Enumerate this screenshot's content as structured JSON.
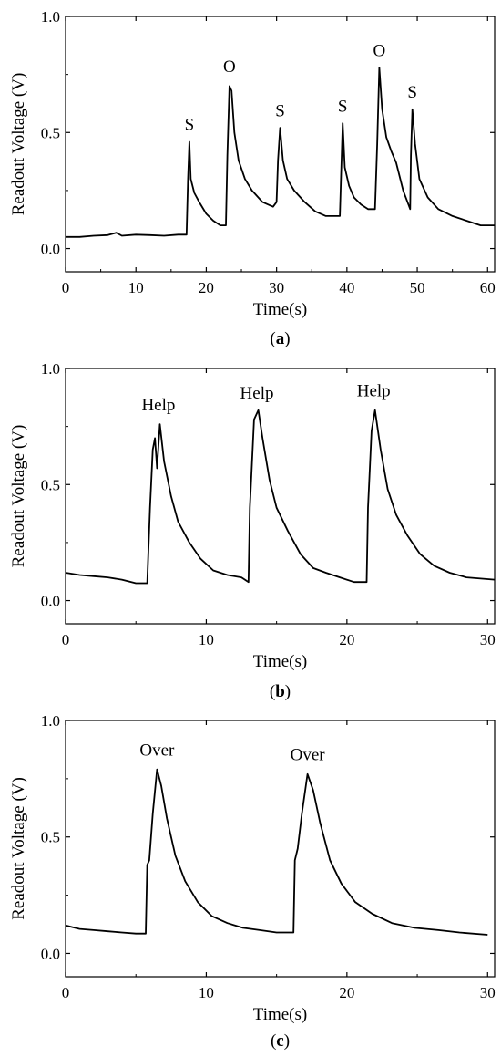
{
  "chart_data": [
    {
      "type": "line",
      "caption_letter": "a",
      "xlabel": "Time(s)",
      "ylabel": "Readout Voltage (V)",
      "xlim": [
        0,
        61
      ],
      "ylim": [
        -0.1,
        1.0
      ],
      "xticks": [
        0,
        10,
        20,
        30,
        40,
        50,
        60
      ],
      "yticks": [
        0.0,
        0.5,
        1.0
      ],
      "xtick_labels": [
        "0",
        "10",
        "20",
        "30",
        "40",
        "50",
        "60"
      ],
      "ytick_labels": [
        "0.0",
        "0.5",
        "1.0"
      ],
      "series": [
        {
          "color": "#000000",
          "points": [
            [
              0,
              0.05
            ],
            [
              2,
              0.05
            ],
            [
              4,
              0.055
            ],
            [
              6,
              0.058
            ],
            [
              7.2,
              0.068
            ],
            [
              8,
              0.055
            ],
            [
              10,
              0.06
            ],
            [
              12,
              0.058
            ],
            [
              14,
              0.055
            ],
            [
              16,
              0.06
            ],
            [
              17.2,
              0.06
            ],
            [
              17.4,
              0.3
            ],
            [
              17.6,
              0.46
            ],
            [
              17.8,
              0.3
            ],
            [
              18.3,
              0.24
            ],
            [
              19,
              0.2
            ],
            [
              20,
              0.15
            ],
            [
              21,
              0.12
            ],
            [
              22,
              0.1
            ],
            [
              22.8,
              0.1
            ],
            [
              23,
              0.4
            ],
            [
              23.3,
              0.7
            ],
            [
              23.6,
              0.68
            ],
            [
              24,
              0.5
            ],
            [
              24.6,
              0.38
            ],
            [
              25.5,
              0.3
            ],
            [
              26.5,
              0.25
            ],
            [
              28,
              0.2
            ],
            [
              29.5,
              0.18
            ],
            [
              30,
              0.2
            ],
            [
              30.2,
              0.38
            ],
            [
              30.5,
              0.52
            ],
            [
              30.9,
              0.38
            ],
            [
              31.5,
              0.3
            ],
            [
              32.5,
              0.25
            ],
            [
              34,
              0.2
            ],
            [
              35.5,
              0.16
            ],
            [
              37,
              0.14
            ],
            [
              39,
              0.14
            ],
            [
              39.2,
              0.35
            ],
            [
              39.4,
              0.54
            ],
            [
              39.7,
              0.35
            ],
            [
              40.3,
              0.27
            ],
            [
              41,
              0.22
            ],
            [
              42,
              0.19
            ],
            [
              43,
              0.17
            ],
            [
              44,
              0.17
            ],
            [
              44.3,
              0.45
            ],
            [
              44.6,
              0.78
            ],
            [
              45,
              0.6
            ],
            [
              45.6,
              0.48
            ],
            [
              46.3,
              0.42
            ],
            [
              47,
              0.37
            ],
            [
              48,
              0.25
            ],
            [
              49,
              0.17
            ],
            [
              49.1,
              0.4
            ],
            [
              49.3,
              0.6
            ],
            [
              49.7,
              0.45
            ],
            [
              50.3,
              0.3
            ],
            [
              51.5,
              0.22
            ],
            [
              53,
              0.17
            ],
            [
              55,
              0.14
            ],
            [
              57,
              0.12
            ],
            [
              59,
              0.1
            ],
            [
              61,
              0.1
            ]
          ]
        }
      ],
      "annotations": [
        {
          "text": "S",
          "x": 17.6,
          "y": 0.51
        },
        {
          "text": "O",
          "x": 23.3,
          "y": 0.76
        },
        {
          "text": "S",
          "x": 30.5,
          "y": 0.57
        },
        {
          "text": "S",
          "x": 39.4,
          "y": 0.59
        },
        {
          "text": "O",
          "x": 44.6,
          "y": 0.83
        },
        {
          "text": "S",
          "x": 49.3,
          "y": 0.65
        }
      ]
    },
    {
      "type": "line",
      "caption_letter": "b",
      "xlabel": "Time(s)",
      "ylabel": "Readout Voltage (V)",
      "xlim": [
        0,
        30.5
      ],
      "ylim": [
        -0.1,
        1.0
      ],
      "xticks": [
        0,
        10,
        20,
        30
      ],
      "yticks": [
        0.0,
        0.5,
        1.0
      ],
      "xtick_labels": [
        "0",
        "10",
        "20",
        "30"
      ],
      "ytick_labels": [
        "0.0",
        "0.5",
        "1.0"
      ],
      "series": [
        {
          "color": "#000000",
          "points": [
            [
              0,
              0.12
            ],
            [
              1,
              0.11
            ],
            [
              2,
              0.105
            ],
            [
              3,
              0.1
            ],
            [
              4,
              0.09
            ],
            [
              5,
              0.075
            ],
            [
              5.8,
              0.075
            ],
            [
              6,
              0.4
            ],
            [
              6.2,
              0.65
            ],
            [
              6.35,
              0.7
            ],
            [
              6.5,
              0.57
            ],
            [
              6.7,
              0.76
            ],
            [
              7,
              0.6
            ],
            [
              7.5,
              0.45
            ],
            [
              8,
              0.34
            ],
            [
              8.8,
              0.25
            ],
            [
              9.6,
              0.18
            ],
            [
              10.5,
              0.13
            ],
            [
              11.5,
              0.11
            ],
            [
              12.5,
              0.1
            ],
            [
              13,
              0.08
            ],
            [
              13.1,
              0.4
            ],
            [
              13.4,
              0.78
            ],
            [
              13.7,
              0.82
            ],
            [
              14,
              0.7
            ],
            [
              14.5,
              0.52
            ],
            [
              15,
              0.4
            ],
            [
              15.8,
              0.3
            ],
            [
              16.7,
              0.2
            ],
            [
              17.6,
              0.14
            ],
            [
              18.5,
              0.12
            ],
            [
              19.5,
              0.1
            ],
            [
              20.5,
              0.08
            ],
            [
              21.4,
              0.08
            ],
            [
              21.5,
              0.4
            ],
            [
              21.75,
              0.73
            ],
            [
              22,
              0.82
            ],
            [
              22.4,
              0.65
            ],
            [
              22.9,
              0.48
            ],
            [
              23.5,
              0.37
            ],
            [
              24.3,
              0.28
            ],
            [
              25.2,
              0.2
            ],
            [
              26.2,
              0.15
            ],
            [
              27.3,
              0.12
            ],
            [
              28.5,
              0.1
            ],
            [
              30.5,
              0.09
            ]
          ]
        }
      ],
      "annotations": [
        {
          "text": "Help",
          "x": 6.6,
          "y": 0.82
        },
        {
          "text": "Help",
          "x": 13.6,
          "y": 0.87
        },
        {
          "text": "Help",
          "x": 21.9,
          "y": 0.88
        }
      ]
    },
    {
      "type": "line",
      "caption_letter": "c",
      "xlabel": "Time(s)",
      "ylabel": "Readout Voltage (V)",
      "xlim": [
        0,
        30.5
      ],
      "ylim": [
        -0.1,
        1.0
      ],
      "xticks": [
        0,
        10,
        20,
        30
      ],
      "yticks": [
        0.0,
        0.5,
        1.0
      ],
      "xtick_labels": [
        "0",
        "10",
        "20",
        "30"
      ],
      "ytick_labels": [
        "0.0",
        "0.5",
        "1.0"
      ],
      "series": [
        {
          "color": "#000000",
          "points": [
            [
              0,
              0.12
            ],
            [
              1,
              0.105
            ],
            [
              2,
              0.1
            ],
            [
              3,
              0.095
            ],
            [
              4,
              0.09
            ],
            [
              5,
              0.085
            ],
            [
              5.7,
              0.085
            ],
            [
              5.8,
              0.38
            ],
            [
              5.95,
              0.4
            ],
            [
              6.2,
              0.6
            ],
            [
              6.5,
              0.79
            ],
            [
              6.8,
              0.72
            ],
            [
              7.2,
              0.58
            ],
            [
              7.8,
              0.42
            ],
            [
              8.5,
              0.31
            ],
            [
              9.4,
              0.22
            ],
            [
              10.4,
              0.16
            ],
            [
              11.5,
              0.13
            ],
            [
              12.6,
              0.11
            ],
            [
              13.8,
              0.1
            ],
            [
              15,
              0.09
            ],
            [
              16.2,
              0.09
            ],
            [
              16.3,
              0.4
            ],
            [
              16.5,
              0.45
            ],
            [
              16.8,
              0.6
            ],
            [
              17.2,
              0.77
            ],
            [
              17.6,
              0.7
            ],
            [
              18.1,
              0.56
            ],
            [
              18.8,
              0.4
            ],
            [
              19.6,
              0.3
            ],
            [
              20.6,
              0.22
            ],
            [
              21.8,
              0.17
            ],
            [
              23.2,
              0.13
            ],
            [
              24.8,
              0.11
            ],
            [
              26.5,
              0.1
            ],
            [
              28,
              0.09
            ],
            [
              30,
              0.08
            ]
          ]
        }
      ],
      "annotations": [
        {
          "text": "Over",
          "x": 6.5,
          "y": 0.85
        },
        {
          "text": "Over",
          "x": 17.2,
          "y": 0.83
        }
      ]
    }
  ]
}
